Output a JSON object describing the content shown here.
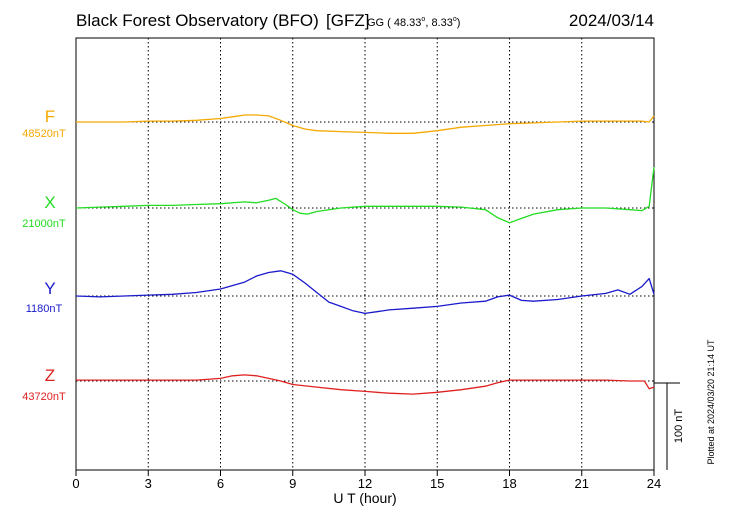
{
  "header": {
    "observatory": "Black Forest Observatory (BFO)",
    "institute": "[GFZ]",
    "coord_prefix": "GG ( 48.33",
    "coord_lat_deg": "o",
    "coord_mid": ",   8.33",
    "coord_lon_deg": "o",
    "coord_suffix": ")",
    "date": "2024/03/14"
  },
  "footer": {
    "xlabel": "U T (hour)",
    "plotted_note": "Plotted at 2024/03/20 21:14 UT"
  },
  "scale_bar": {
    "label": "100 nT",
    "value_nT": 100
  },
  "chart_data": {
    "type": "line",
    "x_unit": "hour UT",
    "xlim": [
      0,
      24
    ],
    "x_ticks": [
      0,
      3,
      6,
      9,
      12,
      15,
      18,
      21,
      24
    ],
    "x_tick_labels": [
      "0",
      "3",
      "6",
      "9",
      "12",
      "15",
      "18",
      "21",
      "24"
    ],
    "xlabel": "U T (hour)",
    "grid": true,
    "y_scale_nT_per_bar": 100,
    "series": [
      {
        "name": "F",
        "baseline_label": "48520nT",
        "baseline_nT": 48520,
        "color": "#f5a800",
        "x": [
          0,
          1,
          2,
          3,
          4,
          5,
          6,
          6.5,
          7,
          7.5,
          8,
          8.5,
          9,
          9.5,
          10,
          11,
          12,
          13,
          14,
          15,
          16,
          17,
          18,
          19,
          20,
          21,
          22,
          23,
          23.5,
          23.8,
          24
        ],
        "values": [
          48520,
          48520,
          48520,
          48521,
          48521,
          48522,
          48524,
          48526,
          48528,
          48528,
          48527,
          48522,
          48516,
          48512,
          48510,
          48509,
          48508,
          48507,
          48507,
          48510,
          48514,
          48516,
          48518,
          48519,
          48520,
          48521,
          48521,
          48521,
          48521,
          48520,
          48527
        ]
      },
      {
        "name": "X",
        "baseline_label": "21000nT",
        "baseline_nT": 21000,
        "color": "#22dd22",
        "x": [
          0,
          1,
          2,
          3,
          4,
          5,
          6,
          7,
          7.5,
          8,
          8.3,
          8.7,
          9,
          9.3,
          9.6,
          10,
          11,
          12,
          13,
          14,
          15,
          16,
          17,
          17.5,
          18,
          18.5,
          19,
          20,
          21,
          22,
          23,
          23.5,
          23.8,
          24
        ],
        "values": [
          21000,
          21001,
          21002,
          21003,
          21003,
          21004,
          21005,
          21007,
          21006,
          21009,
          21011,
          21004,
          20998,
          20994,
          20993,
          20996,
          21000,
          21002,
          21002,
          21002,
          21002,
          21001,
          20998,
          20989,
          20983,
          20988,
          20993,
          20998,
          21000,
          21000,
          20998,
          20997,
          21002,
          21047
        ]
      },
      {
        "name": "Y",
        "baseline_label": "1180nT",
        "baseline_nT": 1180,
        "color": "#1a1acc",
        "x": [
          0,
          1,
          2,
          3,
          4,
          5,
          6,
          7,
          7.5,
          8,
          8.5,
          9,
          9.5,
          10,
          10.5,
          11,
          11.5,
          12,
          12.5,
          13,
          14,
          15,
          16,
          17,
          17.5,
          18,
          18.5,
          19,
          20,
          21,
          22,
          22.5,
          23,
          23.5,
          23.8,
          24
        ],
        "values": [
          1180,
          1179,
          1180,
          1181,
          1182,
          1184,
          1188,
          1196,
          1203,
          1207,
          1209,
          1205,
          1195,
          1184,
          1173,
          1168,
          1163,
          1160,
          1162,
          1164,
          1166,
          1168,
          1172,
          1174,
          1179,
          1181,
          1175,
          1174,
          1176,
          1180,
          1183,
          1187,
          1182,
          1191,
          1200,
          1182
        ]
      },
      {
        "name": "Z",
        "baseline_label": "43720nT",
        "baseline_nT": 43720,
        "color": "#e02020",
        "x": [
          0,
          1,
          2,
          3,
          4,
          5,
          6,
          6.5,
          7,
          7.5,
          8,
          8.5,
          9,
          10,
          11,
          12,
          13,
          14,
          15,
          16,
          17,
          17.5,
          18,
          19,
          20,
          21,
          22,
          23,
          23.6,
          23.8,
          24
        ],
        "values": [
          43721,
          43721,
          43721,
          43721,
          43721,
          43721,
          43723,
          43726,
          43727,
          43726,
          43723,
          43720,
          43716,
          43713,
          43710,
          43708,
          43706,
          43705,
          43707,
          43710,
          43714,
          43718,
          43721,
          43721,
          43721,
          43721,
          43721,
          43720,
          43720,
          43711,
          43713
        ]
      }
    ]
  }
}
